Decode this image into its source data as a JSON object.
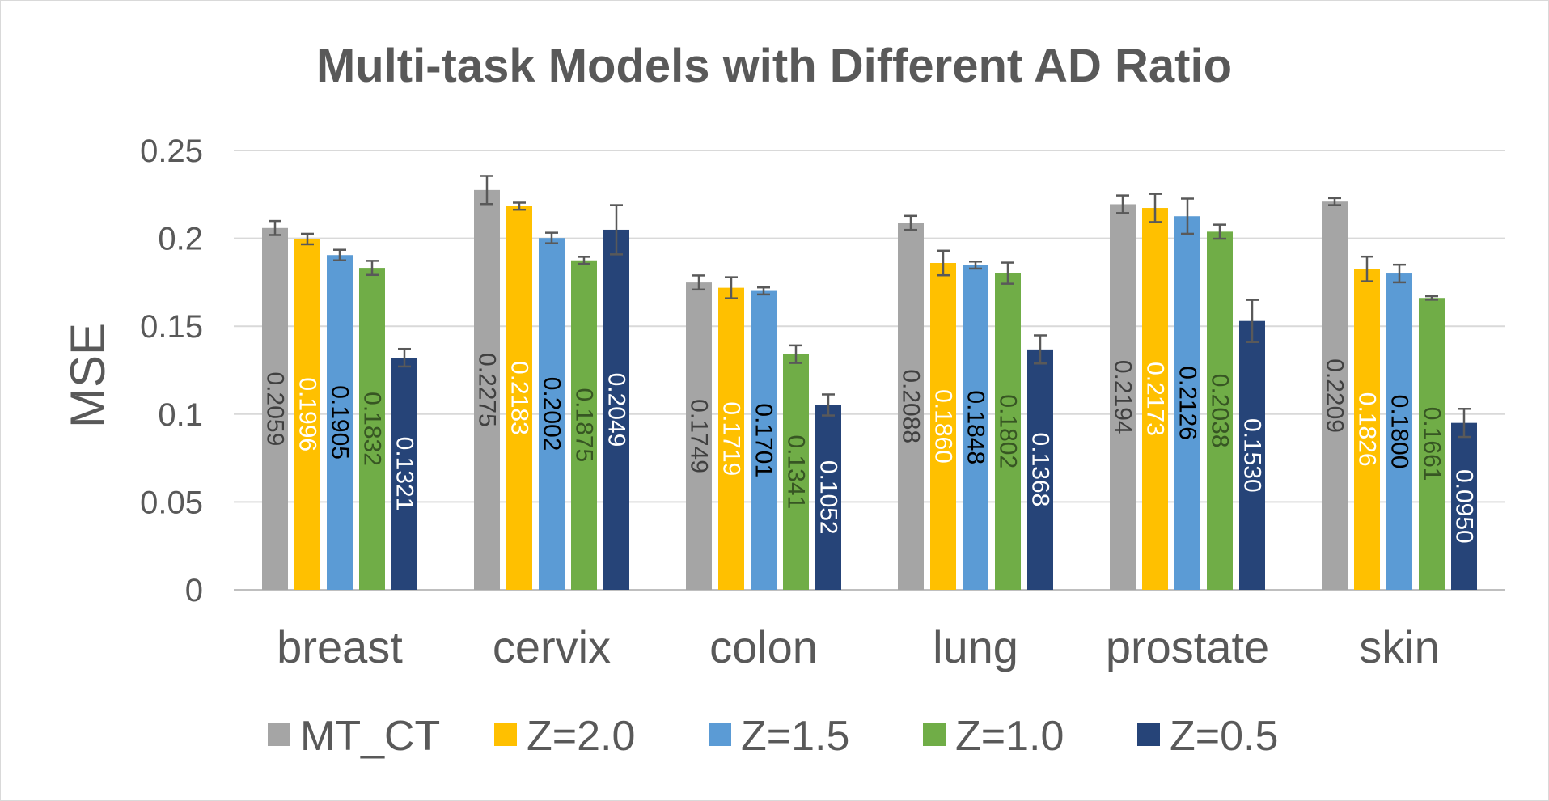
{
  "chart_data": {
    "type": "bar",
    "title": "Multi-task Models with Different AD Ratio",
    "xlabel": "",
    "ylabel": "MSE",
    "ylim": [
      0,
      0.25
    ],
    "yticks": [
      {
        "value": 0,
        "label": "0"
      },
      {
        "value": 0.05,
        "label": "0.05"
      },
      {
        "value": 0.1,
        "label": "0.1"
      },
      {
        "value": 0.15,
        "label": "0.15"
      },
      {
        "value": 0.2,
        "label": "0.2"
      },
      {
        "value": 0.25,
        "label": "0.25"
      }
    ],
    "grid": true,
    "legend_position": "bottom",
    "categories": [
      "breast",
      "cervix",
      "colon",
      "lung",
      "prostate",
      "skin"
    ],
    "series": [
      {
        "name": "MT_CT",
        "color": "#a5a5a5",
        "label_color": "#404040",
        "values": [
          0.2059,
          0.2275,
          0.1749,
          0.2088,
          0.2194,
          0.2209
        ],
        "labels": [
          "0.2059",
          "0.2275",
          "0.1749",
          "0.2088",
          "0.2194",
          "0.2209"
        ],
        "errors": [
          0.004,
          0.008,
          0.004,
          0.004,
          0.005,
          0.002
        ]
      },
      {
        "name": "Z=2.0",
        "color": "#ffc000",
        "label_color": "#ffffff",
        "values": [
          0.1996,
          0.2183,
          0.1719,
          0.186,
          0.2173,
          0.1826
        ],
        "labels": [
          "0.1996",
          "0.2183",
          "0.1719",
          "0.1860",
          "0.2173",
          "0.1826"
        ],
        "errors": [
          0.003,
          0.002,
          0.006,
          0.007,
          0.008,
          0.007
        ]
      },
      {
        "name": "Z=1.5",
        "color": "#5b9bd5",
        "label_color": "#000000",
        "values": [
          0.1905,
          0.2002,
          0.1701,
          0.1848,
          0.2126,
          0.18
        ],
        "labels": [
          "0.1905",
          "0.2002",
          "0.1701",
          "0.1848",
          "0.2126",
          "0.1800"
        ],
        "errors": [
          0.003,
          0.003,
          0.002,
          0.002,
          0.01,
          0.005
        ]
      },
      {
        "name": "Z=1.0",
        "color": "#70ad47",
        "label_color": "#375623",
        "values": [
          0.1832,
          0.1875,
          0.1341,
          0.1802,
          0.2038,
          0.1661
        ],
        "labels": [
          "0.1832",
          "0.1875",
          "0.1341",
          "0.1802",
          "0.2038",
          "0.1661"
        ],
        "errors": [
          0.004,
          0.002,
          0.005,
          0.006,
          0.004,
          0.001
        ]
      },
      {
        "name": "Z=0.5",
        "color": "#264478",
        "label_color": "#ffffff",
        "values": [
          0.1321,
          0.2049,
          0.1052,
          0.1368,
          0.153,
          0.095
        ],
        "labels": [
          "0.1321",
          "0.2049",
          "0.1052",
          "0.1368",
          "0.1530",
          "0.0950"
        ],
        "errors": [
          0.005,
          0.014,
          0.006,
          0.008,
          0.012,
          0.008
        ]
      }
    ]
  }
}
